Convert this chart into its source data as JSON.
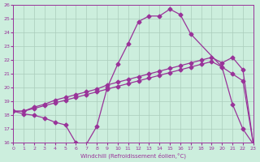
{
  "xlabel": "Windchill (Refroidissement éolien,°C)",
  "xlim": [
    0,
    23
  ],
  "ylim": [
    16,
    26
  ],
  "xticks": [
    0,
    1,
    2,
    3,
    4,
    5,
    6,
    7,
    8,
    9,
    10,
    11,
    12,
    13,
    14,
    15,
    16,
    17,
    18,
    19,
    20,
    21,
    22,
    23
  ],
  "yticks": [
    16,
    17,
    18,
    19,
    20,
    21,
    22,
    23,
    24,
    25,
    26
  ],
  "bg_color": "#cceedd",
  "line_color": "#993399",
  "grid_color": "#aaccbb",
  "line1_x": [
    0,
    1,
    2,
    3,
    4,
    5,
    6,
    7,
    8,
    9,
    10,
    11,
    12,
    13,
    14,
    15,
    16,
    17,
    20,
    21,
    22,
    23
  ],
  "line1_y": [
    18.3,
    18.1,
    18.0,
    17.8,
    17.5,
    17.3,
    16.0,
    15.9,
    17.2,
    20.0,
    21.7,
    23.2,
    24.8,
    25.2,
    25.2,
    25.7,
    25.3,
    23.9,
    21.5,
    18.8,
    17.0,
    15.9
  ],
  "line2_x": [
    0,
    1,
    2,
    3,
    4,
    5,
    6,
    7,
    8,
    9,
    10,
    11,
    12,
    13,
    14,
    15,
    16,
    17,
    18,
    19,
    20,
    21,
    22,
    23
  ],
  "line2_y": [
    18.3,
    18.3,
    18.5,
    18.7,
    18.9,
    19.1,
    19.3,
    19.5,
    19.7,
    19.9,
    20.1,
    20.3,
    20.5,
    20.7,
    20.9,
    21.1,
    21.3,
    21.5,
    21.7,
    21.9,
    21.5,
    21.0,
    20.5,
    15.9
  ],
  "line3_x": [
    0,
    1,
    2,
    3,
    4,
    5,
    6,
    7,
    8,
    9,
    10,
    11,
    12,
    13,
    14,
    15,
    16,
    17,
    18,
    19,
    20,
    21,
    22,
    23
  ],
  "line3_y": [
    18.3,
    18.3,
    18.6,
    18.8,
    19.1,
    19.3,
    19.5,
    19.7,
    19.9,
    20.2,
    20.4,
    20.6,
    20.8,
    21.0,
    21.2,
    21.4,
    21.6,
    21.8,
    22.0,
    22.2,
    21.8,
    22.2,
    21.3,
    15.9
  ]
}
